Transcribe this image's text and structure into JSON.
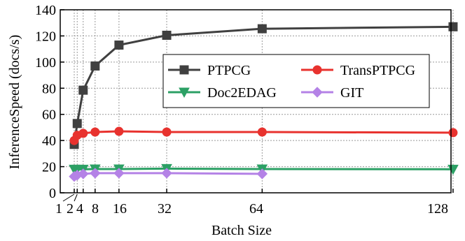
{
  "chart_data": {
    "type": "line",
    "xlabel": "Batch Size",
    "ylabel": "InferenceSpeed (docs/s)",
    "xticks": [
      1,
      2,
      4,
      8,
      16,
      32,
      64,
      128
    ],
    "xtick_labels": [
      "1",
      "2",
      "4",
      "8",
      "16",
      "32",
      "64",
      "128"
    ],
    "yticks": [
      0,
      20,
      40,
      60,
      80,
      100,
      120,
      140
    ],
    "ylim": [
      0,
      140
    ],
    "grid": true,
    "legend_position": "center-right",
    "series": [
      {
        "name": "PTPCG",
        "color": "#404040",
        "marker": "square",
        "x": [
          1,
          2,
          4,
          8,
          16,
          32,
          64,
          128
        ],
        "y": [
          37,
          53,
          78.5,
          97,
          113,
          120.5,
          125.5,
          127
        ]
      },
      {
        "name": "TransPTPCG",
        "color": "#e8322e",
        "marker": "circle",
        "x": [
          1,
          2,
          4,
          8,
          16,
          32,
          64,
          128
        ],
        "y": [
          40,
          44,
          45.5,
          46.5,
          47,
          46.5,
          46.5,
          46
        ]
      },
      {
        "name": "Doc2EDAG",
        "color": "#2ca065",
        "marker": "triangle-down",
        "x": [
          1,
          2,
          4,
          8,
          16,
          32,
          64,
          128
        ],
        "y": [
          18,
          18,
          18,
          18.2,
          18.2,
          18.5,
          18.2,
          18
        ]
      },
      {
        "name": "GIT",
        "color": "#b482e6",
        "marker": "diamond",
        "x": [
          1,
          2,
          4,
          8,
          16,
          32,
          64
        ],
        "y": [
          12.5,
          13.5,
          14.5,
          15,
          15,
          15,
          14.5
        ]
      }
    ]
  }
}
